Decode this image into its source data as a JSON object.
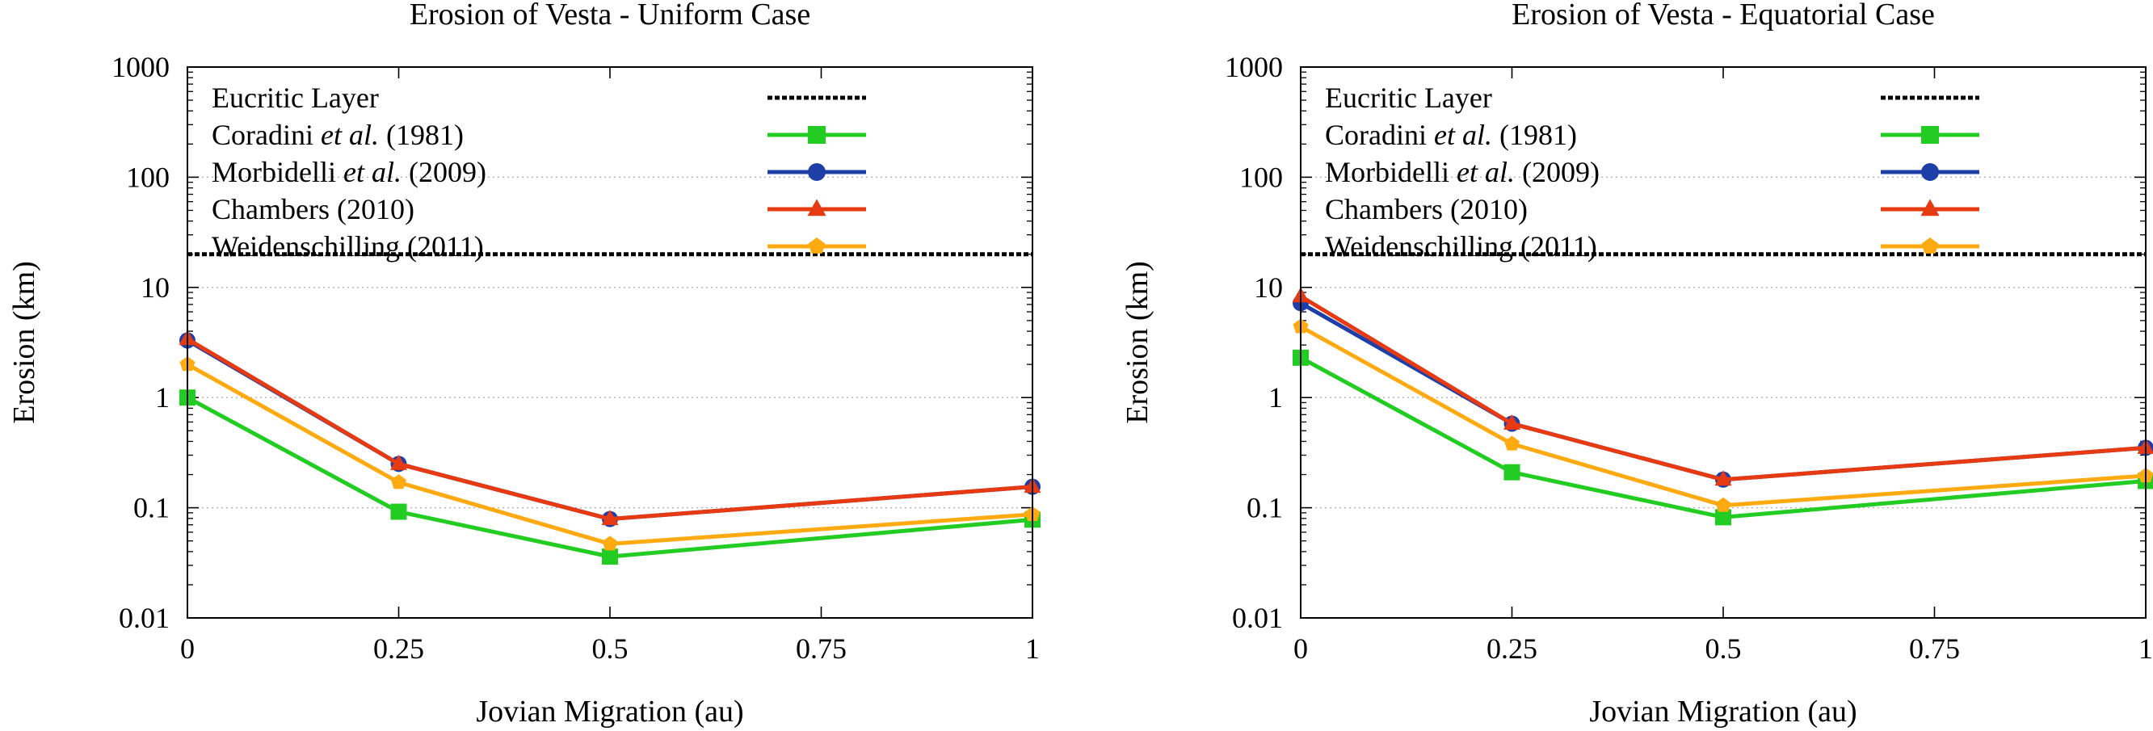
{
  "chart_data": [
    {
      "type": "line",
      "title": "Erosion of Vesta - Uniform Case",
      "xlabel": "Jovian Migration (au)",
      "ylabel": "Erosion (km)",
      "yscale": "log",
      "xlim": [
        0,
        1
      ],
      "ylim": [
        0.01,
        1000
      ],
      "x_ticks": [
        "0",
        "0.25",
        "0.5",
        "0.75",
        "1"
      ],
      "y_ticks": [
        "0.01",
        "0.1",
        "1",
        "10",
        "100",
        "1000"
      ],
      "x": [
        0,
        0.25,
        0.5,
        1
      ],
      "grid": "horizontal dotted at decades",
      "legend_position": "top-left",
      "reference_line": {
        "name": "Eucritic Layer",
        "y": 20,
        "color": "#000000"
      },
      "series": [
        {
          "name_pre": "Coradini ",
          "name_it": "et al.",
          "name_post": " (1981)",
          "color": "#22cc22",
          "marker": "square",
          "values": [
            1.0,
            0.092,
            0.036,
            0.078
          ]
        },
        {
          "name_pre": "Morbidelli ",
          "name_it": "et al.",
          "name_post": " (2009)",
          "color": "#1f3fa8",
          "marker": "circle",
          "values": [
            3.3,
            0.25,
            0.079,
            0.155
          ]
        },
        {
          "name_pre": "Chambers (2010)",
          "name_it": "",
          "name_post": "",
          "color": "#e63a12",
          "marker": "triangle",
          "values": [
            3.4,
            0.25,
            0.079,
            0.155
          ]
        },
        {
          "name_pre": "Weidenschilling (2011)",
          "name_it": "",
          "name_post": "",
          "color": "#ffaa11",
          "marker": "pentagon",
          "values": [
            2.0,
            0.17,
            0.047,
            0.087
          ]
        }
      ]
    },
    {
      "type": "line",
      "title": "Erosion of Vesta - Equatorial Case",
      "xlabel": "Jovian Migration (au)",
      "ylabel": "Erosion (km)",
      "yscale": "log",
      "xlim": [
        0,
        1
      ],
      "ylim": [
        0.01,
        1000
      ],
      "x_ticks": [
        "0",
        "0.25",
        "0.5",
        "0.75",
        "1"
      ],
      "y_ticks": [
        "0.01",
        "0.1",
        "1",
        "10",
        "100",
        "1000"
      ],
      "x": [
        0,
        0.25,
        0.5,
        1
      ],
      "grid": "horizontal dotted at decades",
      "legend_position": "top-left",
      "reference_line": {
        "name": "Eucritic Layer",
        "y": 20,
        "color": "#000000"
      },
      "series": [
        {
          "name_pre": "Coradini ",
          "name_it": "et al.",
          "name_post": " (1981)",
          "color": "#22cc22",
          "marker": "square",
          "values": [
            2.3,
            0.21,
            0.082,
            0.175
          ]
        },
        {
          "name_pre": "Morbidelli ",
          "name_it": "et al.",
          "name_post": " (2009)",
          "color": "#1f3fa8",
          "marker": "circle",
          "values": [
            7.2,
            0.58,
            0.18,
            0.35
          ]
        },
        {
          "name_pre": "Chambers (2010)",
          "name_it": "",
          "name_post": "",
          "color": "#e63a12",
          "marker": "triangle",
          "values": [
            8.3,
            0.58,
            0.18,
            0.35
          ]
        },
        {
          "name_pre": "Weidenschilling (2011)",
          "name_it": "",
          "name_post": "",
          "color": "#ffaa11",
          "marker": "pentagon",
          "values": [
            4.4,
            0.38,
            0.105,
            0.195
          ]
        }
      ]
    }
  ]
}
